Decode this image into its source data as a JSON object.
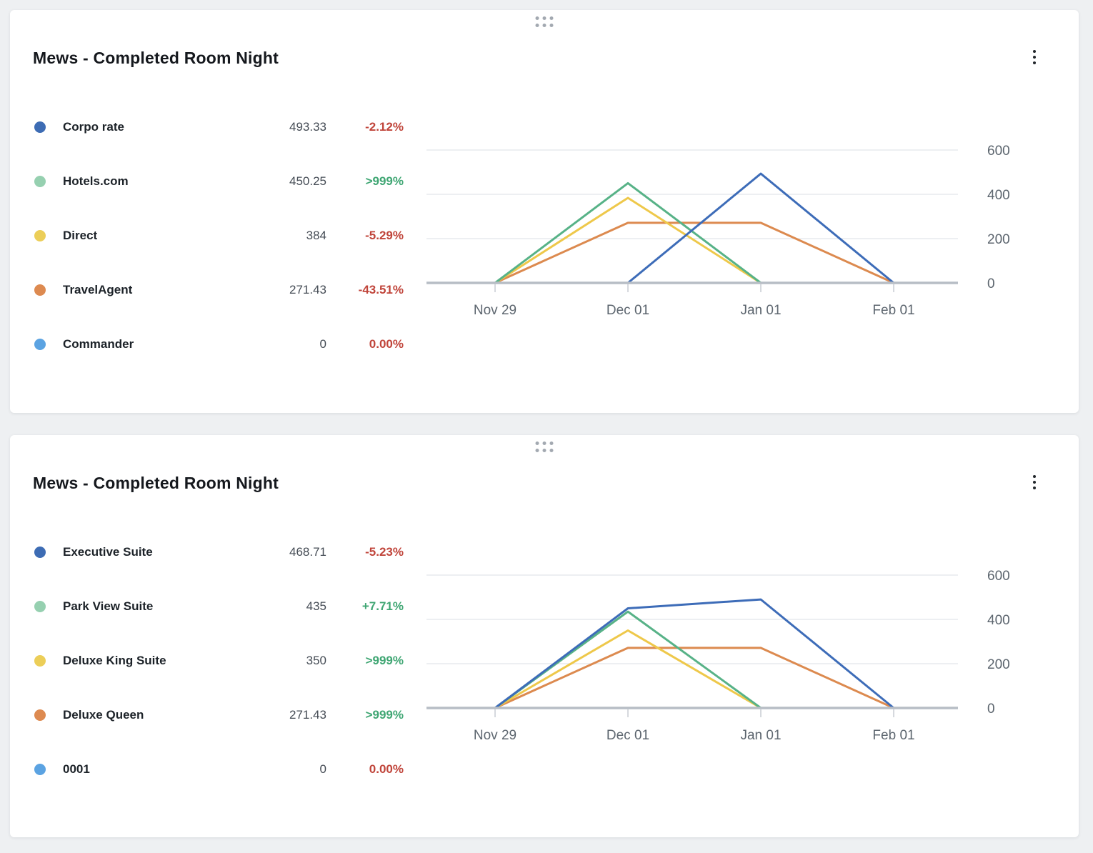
{
  "page": {
    "background": "#eef0f2"
  },
  "colors": {
    "positive": "#3fa673",
    "negative": "#c0443a",
    "axis_text": "#5d666f",
    "gridline": "#e2e5e9",
    "axis_line": "#b7bdc5",
    "tick": "#c8ccd2",
    "drag_dots": "#a3a9b1",
    "kebab_dots": "#22262b"
  },
  "cards": [
    {
      "title": "Mews - Completed Room Night",
      "legend": [
        {
          "label": "Corpo rate",
          "value": "493.33",
          "change": "-2.12%",
          "trend": "negative",
          "dot_color": "#3d6cb4"
        },
        {
          "label": "Hotels.com",
          "value": "450.25",
          "change": ">999%",
          "trend": "positive",
          "dot_color": "#96d0b0"
        },
        {
          "label": "Direct",
          "value": "384",
          "change": "-5.29%",
          "trend": "negative",
          "dot_color": "#ecce58"
        },
        {
          "label": "TravelAgent",
          "value": "271.43",
          "change": "-43.51%",
          "trend": "negative",
          "dot_color": "#dd8a50"
        },
        {
          "label": "Commander",
          "value": "0",
          "change": "0.00%",
          "trend": "negative",
          "dot_color": "#5ba3e2"
        }
      ],
      "chart_data": {
        "type": "line",
        "title": "Mews - Completed Room Night",
        "x": [
          "Nov 29",
          "Dec 01",
          "Jan 01",
          "Feb 01"
        ],
        "series": [
          {
            "name": "Corpo rate",
            "color": "#3d6cb8",
            "values": [
              null,
              0,
              493.33,
              0
            ]
          },
          {
            "name": "Hotels.com",
            "color": "#57b287",
            "values": [
              0,
              450.25,
              0,
              null
            ]
          },
          {
            "name": "Direct",
            "color": "#eec84a",
            "values": [
              0,
              384,
              0,
              null
            ]
          },
          {
            "name": "TravelAgent",
            "color": "#dc8a4f",
            "values": [
              0,
              271.43,
              271.43,
              0
            ]
          },
          {
            "name": "Commander",
            "color": "#5ba3e2",
            "values": [
              0,
              0,
              0,
              0
            ]
          }
        ],
        "ylim": [
          0,
          600
        ],
        "yticks": [
          0,
          200,
          400,
          600
        ],
        "y_axis_position": "right",
        "grid": true,
        "legend_position": "left"
      }
    },
    {
      "title": "Mews - Completed Room Night",
      "legend": [
        {
          "label": "Executive Suite",
          "value": "468.71",
          "change": "-5.23%",
          "trend": "negative",
          "dot_color": "#3d6cb4"
        },
        {
          "label": "Park View Suite",
          "value": "435",
          "change": "+7.71%",
          "trend": "positive",
          "dot_color": "#96d0b0"
        },
        {
          "label": "Deluxe King Suite",
          "value": "350",
          "change": ">999%",
          "trend": "positive",
          "dot_color": "#ecce58"
        },
        {
          "label": "Deluxe Queen",
          "value": "271.43",
          "change": ">999%",
          "trend": "positive",
          "dot_color": "#dd8a50"
        },
        {
          "label": "0001",
          "value": "0",
          "change": "0.00%",
          "trend": "negative",
          "dot_color": "#5ba3e2"
        }
      ],
      "chart_data": {
        "type": "line",
        "title": "Mews - Completed Room Night",
        "x": [
          "Nov 29",
          "Dec 01",
          "Jan 01",
          "Feb 01"
        ],
        "series": [
          {
            "name": "Executive Suite",
            "color": "#3d6cb8",
            "values": [
              0,
              450,
              490,
              0
            ]
          },
          {
            "name": "Park View Suite",
            "color": "#57b287",
            "values": [
              0,
              435,
              0,
              null
            ]
          },
          {
            "name": "Deluxe King Suite",
            "color": "#eec84a",
            "values": [
              0,
              350,
              0,
              null
            ]
          },
          {
            "name": "Deluxe Queen",
            "color": "#dc8a4f",
            "values": [
              0,
              271.43,
              271.43,
              0
            ]
          },
          {
            "name": "0001",
            "color": "#5ba3e2",
            "values": [
              0,
              0,
              0,
              0
            ]
          }
        ],
        "ylim": [
          0,
          600
        ],
        "yticks": [
          0,
          200,
          400,
          600
        ],
        "y_axis_position": "right",
        "grid": true,
        "legend_position": "left"
      }
    }
  ]
}
